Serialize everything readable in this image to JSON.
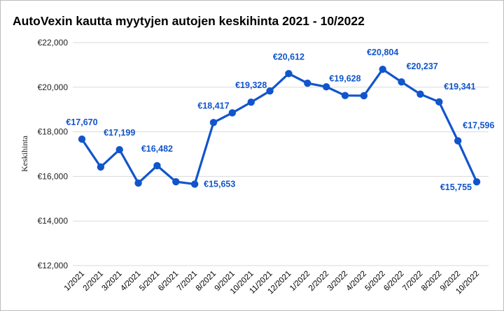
{
  "chart_data": {
    "type": "line",
    "title": "AutoVexin kautta myytyjen autojen keskihinta 2021 - 10/2022",
    "xlabel": "",
    "ylabel": "Keskihinta",
    "ylim": [
      12000,
      22000
    ],
    "yticks": [
      12000,
      14000,
      16000,
      18000,
      20000,
      22000
    ],
    "ytick_labels": [
      "€12,000",
      "€14,000",
      "€16,000",
      "€18,000",
      "€20,000",
      "€22,000"
    ],
    "grid": true,
    "legend": null,
    "categories": [
      "1/2021",
      "2/2021",
      "3/2021",
      "4/2021",
      "5/2021",
      "6/2021",
      "7/2021",
      "8/2021",
      "9/2021",
      "10/2021",
      "11/2021",
      "12/2021",
      "1/2022",
      "2/2022",
      "3/2022",
      "4/2022",
      "5/2022",
      "6/2022",
      "7/2022",
      "8/2022",
      "9/2022",
      "10/2022"
    ],
    "series": [
      {
        "name": "Keskihinta",
        "color": "#1155cc",
        "values": [
          17670,
          16420,
          17199,
          15700,
          16482,
          15760,
          15653,
          18417,
          18850,
          19328,
          19830,
          20612,
          20180,
          20020,
          19628,
          19620,
          20804,
          20237,
          19690,
          19341,
          17596,
          15755
        ]
      }
    ],
    "data_labels": [
      {
        "index": 0,
        "text": "€17,670",
        "pos": "above"
      },
      {
        "index": 2,
        "text": "€17,199",
        "pos": "above"
      },
      {
        "index": 4,
        "text": "€16,482",
        "pos": "above"
      },
      {
        "index": 6,
        "text": "€15,653",
        "pos": "right"
      },
      {
        "index": 7,
        "text": "€18,417",
        "pos": "above"
      },
      {
        "index": 9,
        "text": "€19,328",
        "pos": "above"
      },
      {
        "index": 11,
        "text": "€20,612",
        "pos": "above"
      },
      {
        "index": 14,
        "text": "€19,628",
        "pos": "above"
      },
      {
        "index": 16,
        "text": "€20,804",
        "pos": "above"
      },
      {
        "index": 17,
        "text": "€20,237",
        "pos": "above-right"
      },
      {
        "index": 19,
        "text": "€19,341",
        "pos": "above-right"
      },
      {
        "index": 20,
        "text": "€17,596",
        "pos": "above-right"
      },
      {
        "index": 21,
        "text": "€15,755",
        "pos": "below-left"
      }
    ],
    "colors": {
      "line": "#1155cc",
      "label": "#1155cc",
      "grid": "#d9d9d9",
      "border": "#bdbdbd"
    }
  }
}
